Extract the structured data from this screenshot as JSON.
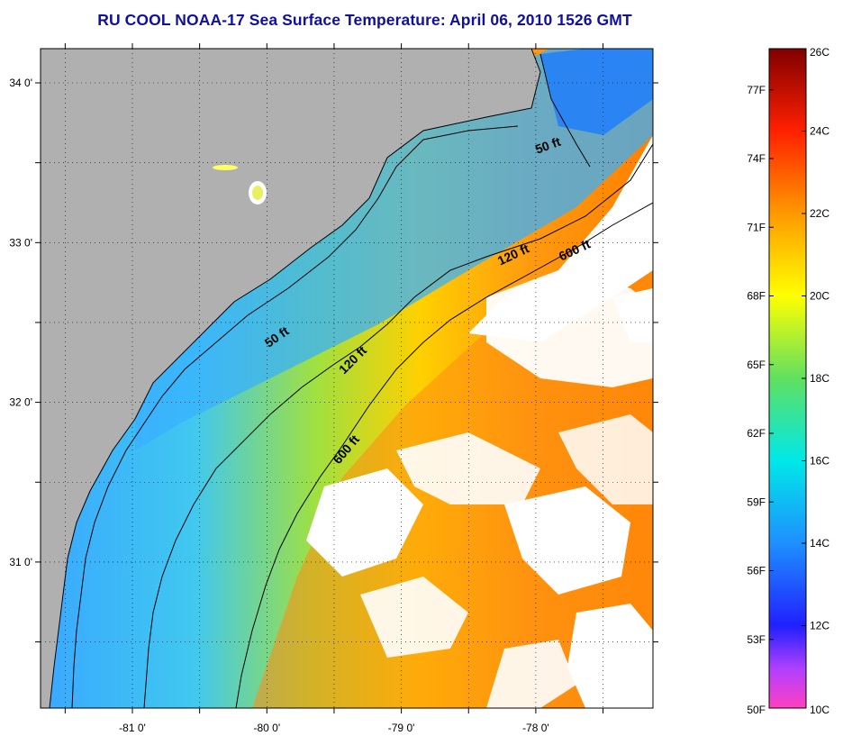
{
  "title": "RU COOL  NOAA-17  Sea Surface Temperature:  April 06, 2010 1526 GMT",
  "map": {
    "lon_range": [
      -81.65,
      -77.1
    ],
    "lat_range": [
      30.15,
      34.2
    ],
    "lat_labels": [
      "34 0'",
      "33 0'",
      "32 0'",
      "31 0'"
    ],
    "lon_labels": [
      "-81 0'",
      "-80 0'",
      "-79 0'",
      "-78 0'"
    ],
    "gridlines": "dotted",
    "land_color": "#b0b0b0",
    "cloud_color": "#ffffff"
  },
  "contours": [
    {
      "label": "50 ft"
    },
    {
      "label": "50 ft"
    },
    {
      "label": "120 ft"
    },
    {
      "label": "120 ft"
    },
    {
      "label": "600 ft"
    },
    {
      "label": "600 ft"
    }
  ],
  "colorbar": {
    "celsius_labels": [
      "26C",
      "24C",
      "22C",
      "20C",
      "18C",
      "16C",
      "14C",
      "12C",
      "10C"
    ],
    "fahrenheit_labels": [
      "77F",
      "74F",
      "71F",
      "68F",
      "65F",
      "62F",
      "59F",
      "56F",
      "53F",
      "50F"
    ],
    "range_c": [
      10,
      26
    ],
    "colors": {
      "c10": "#ff40c0",
      "c11": "#b040ff",
      "c12": "#2020ff",
      "c14": "#1e90ff",
      "c16": "#00e8e8",
      "c18": "#60e060",
      "c20": "#ffff00",
      "c22": "#ff9900",
      "c24": "#ff2000",
      "c26": "#800000"
    }
  }
}
